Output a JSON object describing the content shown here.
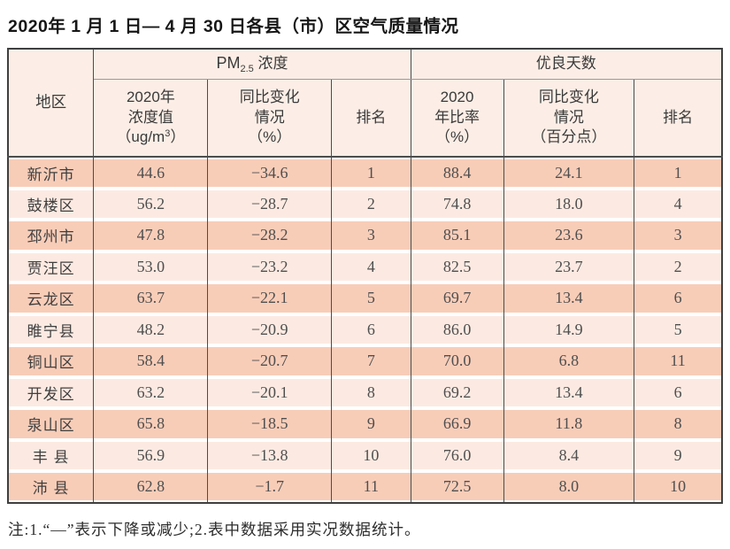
{
  "title": "2020年 1 月 1 日— 4 月 30 日各县（市）区空气质量情况",
  "note": "注:1.“—”表示下降或减少;2.表中数据采用实况数据统计。",
  "colors": {
    "row_odd": "#f8cdb8",
    "row_even": "#fceae2",
    "header_bg": "#fceee6",
    "border_outer": "#3f3f3f",
    "border_inner": "#4c4c4c"
  },
  "table": {
    "header": {
      "region": "地区",
      "group_pm": {
        "main": "PM",
        "sub": "2.5",
        "rest": " 浓度"
      },
      "group_days": "优良天数",
      "col_conc": {
        "l1": "2020年",
        "l2": "浓度值",
        "l3a": "（ug/m",
        "sup": "3",
        "l3b": "）"
      },
      "col_change_pct": {
        "l1": "同比变化",
        "l2": "情况",
        "l3": "（%）"
      },
      "col_rank_pm": "排名",
      "col_ratio": {
        "l1": "2020",
        "l2": "年比率",
        "l3": "（%）"
      },
      "col_change_pts": {
        "l1": "同比变化",
        "l2": "情况",
        "l3": "（百分点）"
      },
      "col_rank_days": "排名"
    },
    "rows": [
      [
        "新沂市",
        "44.6",
        "−34.6",
        "1",
        "88.4",
        "24.1",
        "1"
      ],
      [
        "鼓楼区",
        "56.2",
        "−28.7",
        "2",
        "74.8",
        "18.0",
        "4"
      ],
      [
        "邳州市",
        "47.8",
        "−28.2",
        "3",
        "85.1",
        "23.6",
        "3"
      ],
      [
        "贾汪区",
        "53.0",
        "−23.2",
        "4",
        "82.5",
        "23.7",
        "2"
      ],
      [
        "云龙区",
        "63.7",
        "−22.1",
        "5",
        "69.7",
        "13.4",
        "6"
      ],
      [
        "睢宁县",
        "48.2",
        "−20.9",
        "6",
        "86.0",
        "14.9",
        "5"
      ],
      [
        "铜山区",
        "58.4",
        "−20.7",
        "7",
        "70.0",
        "6.8",
        "11"
      ],
      [
        "开发区",
        "63.2",
        "−20.1",
        "8",
        "69.2",
        "13.4",
        "6"
      ],
      [
        "泉山区",
        "65.8",
        "−18.5",
        "9",
        "66.9",
        "11.8",
        "8"
      ],
      [
        "丰 县",
        "56.9",
        "−13.8",
        "10",
        "76.0",
        "8.4",
        "9"
      ],
      [
        "沛 县",
        "62.8",
        "−1.7",
        "11",
        "72.5",
        "8.0",
        "10"
      ]
    ]
  }
}
